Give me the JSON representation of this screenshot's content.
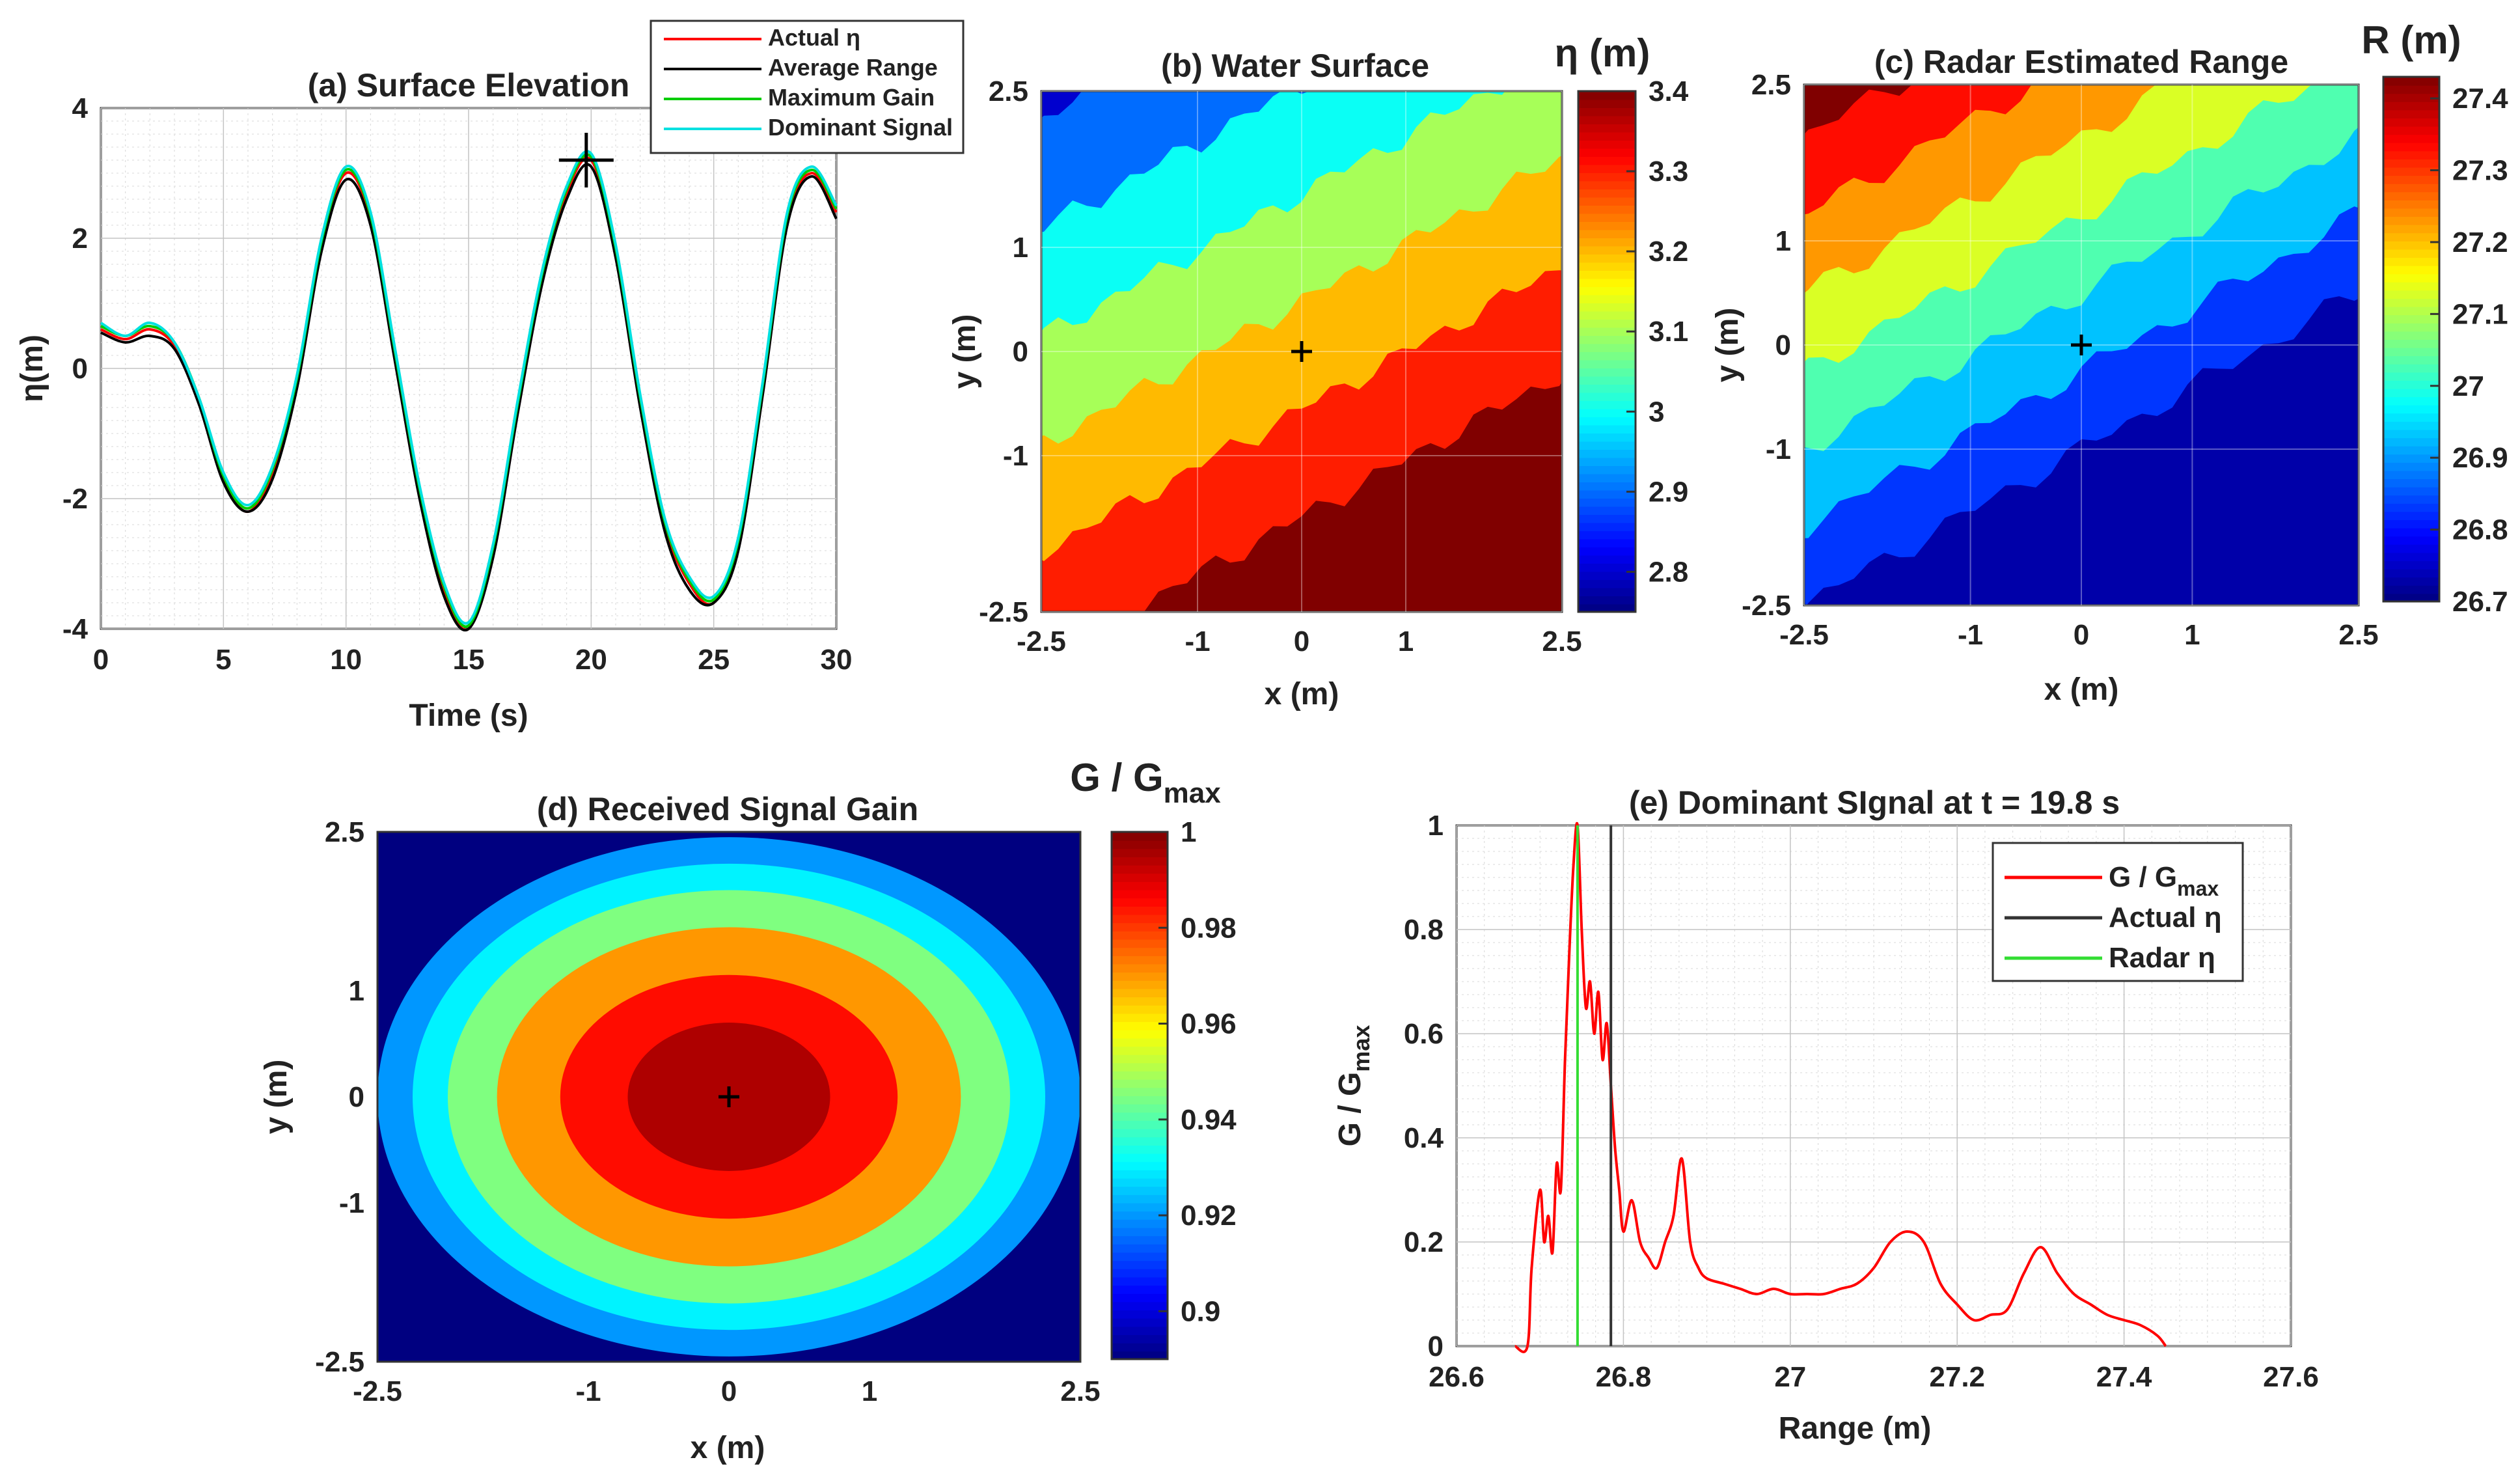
{
  "chart_data": [
    {
      "id": "a",
      "type": "line",
      "title": "(a) Surface Elevation",
      "xlabel": "Time (s)",
      "ylabel": "η(m)",
      "xlim": [
        0,
        30
      ],
      "ylim": [
        -4,
        4
      ],
      "xticks": [
        "0",
        "5",
        "10",
        "15",
        "20",
        "25",
        "30"
      ],
      "yticks": [
        "-4",
        "-2",
        "0",
        "2",
        "4"
      ],
      "grid": true,
      "legend_position": "top-right",
      "marker": {
        "x": 19.8,
        "y": 3.2,
        "symbol": "+"
      },
      "series": [
        {
          "name": "Actual η",
          "color": "#ff0000",
          "x": [
            0,
            1,
            2,
            3,
            4,
            5,
            6,
            7,
            8,
            9,
            10,
            11,
            12,
            13,
            14,
            15,
            16,
            17,
            18,
            19,
            20,
            21,
            22,
            23,
            24,
            25,
            26,
            27,
            28,
            29,
            30
          ],
          "y": [
            0.6,
            0.45,
            0.6,
            0.35,
            -0.5,
            -1.7,
            -2.2,
            -1.6,
            -0.2,
            1.9,
            3.0,
            2.3,
            0.2,
            -1.9,
            -3.4,
            -4.0,
            -2.8,
            -0.6,
            1.4,
            2.7,
            3.2,
            1.8,
            -0.5,
            -2.4,
            -3.3,
            -3.6,
            -2.7,
            -0.3,
            2.3,
            3.0,
            2.4
          ]
        },
        {
          "name": "Average Range",
          "color": "#000000",
          "x": [
            0,
            1,
            2,
            3,
            4,
            5,
            6,
            7,
            8,
            9,
            10,
            11,
            12,
            13,
            14,
            15,
            16,
            17,
            18,
            19,
            20,
            21,
            22,
            23,
            24,
            25,
            26,
            27,
            28,
            29,
            30
          ],
          "y": [
            0.55,
            0.4,
            0.5,
            0.3,
            -0.55,
            -1.75,
            -2.2,
            -1.7,
            -0.3,
            1.8,
            2.9,
            2.2,
            0.1,
            -2.0,
            -3.5,
            -4.0,
            -2.9,
            -0.7,
            1.3,
            2.6,
            3.1,
            1.7,
            -0.6,
            -2.5,
            -3.4,
            -3.6,
            -2.8,
            -0.4,
            2.2,
            2.95,
            2.3
          ]
        },
        {
          "name": "Maximum Gain",
          "color": "#00cc00",
          "x": [
            0,
            1,
            2,
            3,
            4,
            5,
            6,
            7,
            8,
            9,
            10,
            11,
            12,
            13,
            14,
            15,
            16,
            17,
            18,
            19,
            20,
            21,
            22,
            23,
            24,
            25,
            26,
            27,
            28,
            29,
            30
          ],
          "y": [
            0.65,
            0.5,
            0.65,
            0.4,
            -0.45,
            -1.65,
            -2.15,
            -1.55,
            -0.15,
            1.95,
            3.05,
            2.35,
            0.25,
            -1.85,
            -3.35,
            -3.95,
            -2.75,
            -0.55,
            1.45,
            2.75,
            3.25,
            1.85,
            -0.45,
            -2.35,
            -3.25,
            -3.55,
            -2.65,
            -0.25,
            2.35,
            3.05,
            2.45
          ]
        },
        {
          "name": "Dominant Signal",
          "color": "#00e0e0",
          "x": [
            0,
            1,
            2,
            3,
            4,
            5,
            6,
            7,
            8,
            9,
            10,
            11,
            12,
            13,
            14,
            15,
            16,
            17,
            18,
            19,
            20,
            21,
            22,
            23,
            24,
            25,
            26,
            27,
            28,
            29,
            30
          ],
          "y": [
            0.7,
            0.5,
            0.7,
            0.4,
            -0.45,
            -1.6,
            -2.1,
            -1.5,
            -0.1,
            2.0,
            3.1,
            2.4,
            0.3,
            -1.8,
            -3.3,
            -3.9,
            -2.7,
            -0.5,
            1.5,
            2.8,
            3.3,
            1.9,
            -0.4,
            -2.3,
            -3.2,
            -3.5,
            -2.6,
            -0.2,
            2.4,
            3.1,
            2.5
          ]
        }
      ]
    },
    {
      "id": "b",
      "type": "heatmap",
      "title": "(b) Water Surface",
      "xlabel": "x (m)",
      "ylabel": "y (m)",
      "xlim": [
        -2.5,
        2.5
      ],
      "ylim": [
        -2.5,
        2.5
      ],
      "xticks": [
        "-2.5",
        "-1",
        "0",
        "1",
        "2.5"
      ],
      "yticks": [
        "-2.5",
        "-1",
        "0",
        "1",
        "2.5"
      ],
      "colorbar_label": "η (m)",
      "clim": [
        2.75,
        3.4
      ],
      "colorbar_ticks": [
        "2.8",
        "2.9",
        "3",
        "3.1",
        "3.2",
        "3.3",
        "3.4"
      ],
      "marker": {
        "x": 0,
        "y": 0,
        "symbol": "+"
      },
      "field": "plane",
      "levels": [
        2.75,
        2.85,
        2.95,
        3.05,
        3.15,
        3.25,
        3.35
      ]
    },
    {
      "id": "c",
      "type": "heatmap",
      "title": "(c) Radar Estimated Range",
      "xlabel": "x (m)",
      "ylabel": "y (m)",
      "xlim": [
        -2.5,
        2.5
      ],
      "ylim": [
        -2.5,
        2.5
      ],
      "xticks": [
        "-2.5",
        "-1",
        "0",
        "1",
        "2.5"
      ],
      "yticks": [
        "-2.5",
        "-1",
        "0",
        "1",
        "2.5"
      ],
      "colorbar_label": "R (m)",
      "clim": [
        26.7,
        27.43
      ],
      "colorbar_ticks": [
        "26.7",
        "26.8",
        "26.9",
        "27",
        "27.1",
        "27.2",
        "27.3",
        "27.4"
      ],
      "marker": {
        "x": 0,
        "y": 0,
        "symbol": "+"
      },
      "field": "plane",
      "levels": [
        26.7,
        26.8,
        26.9,
        27.0,
        27.1,
        27.2,
        27.3,
        27.4
      ]
    },
    {
      "id": "d",
      "type": "heatmap",
      "title": "(d) Received Signal Gain",
      "xlabel": "x (m)",
      "ylabel": "y (m)",
      "xlim": [
        -2.5,
        2.5
      ],
      "ylim": [
        -2.5,
        2.5
      ],
      "xticks": [
        "-2.5",
        "-1",
        "0",
        "1",
        "2.5"
      ],
      "yticks": [
        "-2.5",
        "-1",
        "0",
        "1",
        "2.5"
      ],
      "colorbar_label": "G / G",
      "colorbar_label_sub": "max",
      "clim": [
        0.89,
        1.0
      ],
      "colorbar_ticks": [
        "0.9",
        "0.92",
        "0.94",
        "0.96",
        "0.98",
        "1"
      ],
      "marker": {
        "x": 0,
        "y": 0,
        "symbol": "+"
      },
      "field": "ellipses",
      "ellipses": [
        {
          "rx": 2.5,
          "ry": 2.45,
          "value": 0.92
        },
        {
          "rx": 2.25,
          "ry": 2.2,
          "value": 0.93
        },
        {
          "rx": 2.0,
          "ry": 1.95,
          "value": 0.945
        },
        {
          "rx": 1.65,
          "ry": 1.6,
          "value": 0.97
        },
        {
          "rx": 1.2,
          "ry": 1.15,
          "value": 0.985
        },
        {
          "rx": 0.72,
          "ry": 0.7,
          "value": 0.995
        }
      ]
    },
    {
      "id": "e",
      "type": "line",
      "title": "(e) Dominant SIgnal at t = 19.8 s",
      "xlabel": "Range (m)",
      "ylabel": "G / G",
      "ylabel_sub": "max",
      "xlim": [
        26.6,
        27.6
      ],
      "ylim": [
        0,
        1
      ],
      "xticks": [
        "26.6",
        "26.8",
        "27",
        "27.2",
        "27.4",
        "27.6"
      ],
      "yticks": [
        "0",
        "0.2",
        "0.4",
        "0.6",
        "0.8",
        "1"
      ],
      "grid": true,
      "legend_position": "top-right",
      "series": [
        {
          "name": "G / G",
          "name_sub": "max",
          "color": "#ff0000",
          "x": [
            26.67,
            26.685,
            26.69,
            26.7,
            26.705,
            26.71,
            26.715,
            26.72,
            26.725,
            26.73,
            26.735,
            26.74,
            26.745,
            26.75,
            26.755,
            26.76,
            26.765,
            26.77,
            26.775,
            26.78,
            26.785,
            26.79,
            26.795,
            26.8,
            26.81,
            26.82,
            26.83,
            26.84,
            26.85,
            26.86,
            26.87,
            26.88,
            26.89,
            26.9,
            26.92,
            26.94,
            26.96,
            26.98,
            27.0,
            27.02,
            27.04,
            27.06,
            27.08,
            27.1,
            27.12,
            27.14,
            27.16,
            27.18,
            27.2,
            27.22,
            27.24,
            27.26,
            27.28,
            27.3,
            27.32,
            27.34,
            27.36,
            27.38,
            27.4,
            27.42,
            27.44,
            27.45
          ],
          "y": [
            0.0,
            0.0,
            0.15,
            0.3,
            0.2,
            0.25,
            0.18,
            0.35,
            0.3,
            0.55,
            0.75,
            0.92,
            1.0,
            0.8,
            0.65,
            0.7,
            0.6,
            0.68,
            0.55,
            0.62,
            0.5,
            0.38,
            0.3,
            0.22,
            0.28,
            0.2,
            0.17,
            0.15,
            0.2,
            0.25,
            0.36,
            0.2,
            0.15,
            0.13,
            0.12,
            0.11,
            0.1,
            0.11,
            0.1,
            0.1,
            0.1,
            0.11,
            0.12,
            0.15,
            0.2,
            0.22,
            0.2,
            0.12,
            0.08,
            0.05,
            0.06,
            0.07,
            0.14,
            0.19,
            0.14,
            0.1,
            0.08,
            0.06,
            0.05,
            0.04,
            0.02,
            0.0
          ]
        },
        {
          "name": "Actual η",
          "color": "#333333",
          "x": [
            26.785,
            26.785
          ],
          "y": [
            0,
            1
          ]
        },
        {
          "name": "Radar η",
          "color": "#33dd33",
          "x": [
            26.745,
            26.745
          ],
          "y": [
            0,
            1
          ]
        }
      ]
    }
  ]
}
